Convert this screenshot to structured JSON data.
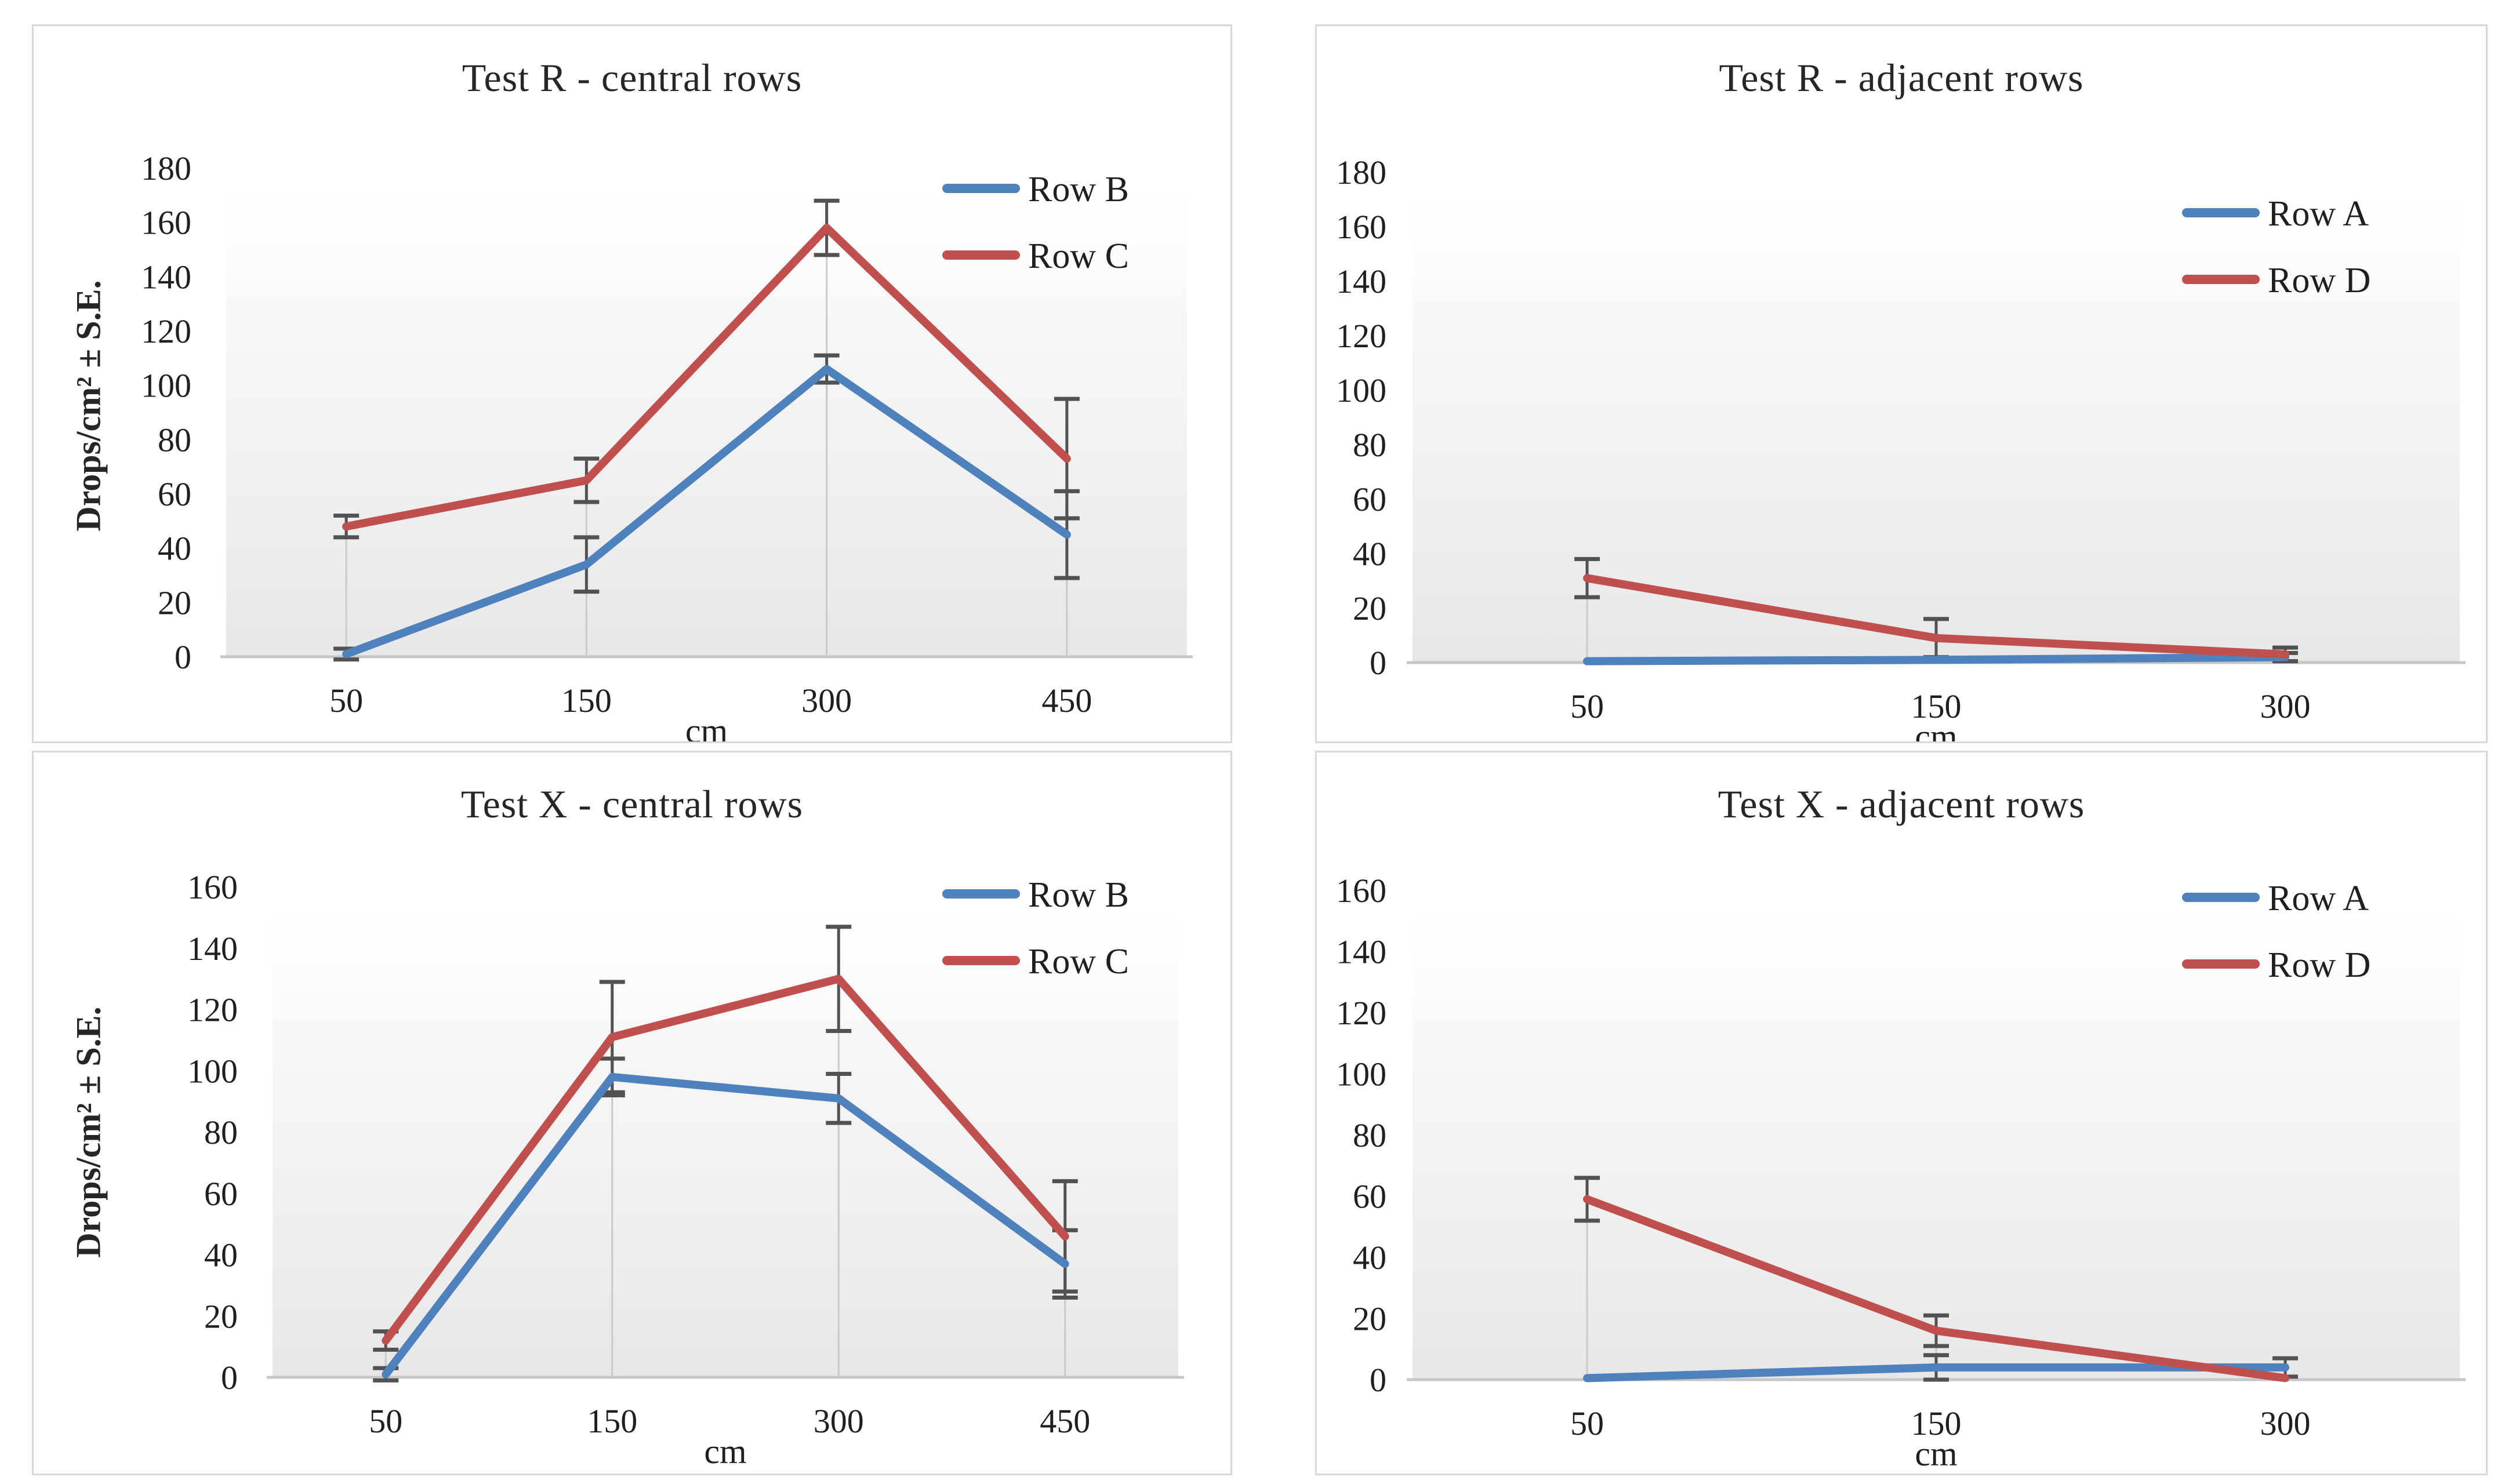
{
  "figure": {
    "background": "#ffffff",
    "panel_border_color": "#d8d8d8"
  },
  "palette": {
    "series_blue": "#4F81BD",
    "series_red": "#C0504D",
    "error_bar": "#525252",
    "drop_line": "#cbcbcb",
    "axis_line": "#c6c6c6",
    "text": "#1f1f1f"
  },
  "chart_data": [
    {
      "type": "line",
      "title": "Test R - central rows",
      "ylabel": "Drops/cm² ± S.E.",
      "xlabel": "cm",
      "categories": [
        "50",
        "150",
        "300",
        "450"
      ],
      "ylim": [
        0,
        180
      ],
      "yticks": [
        0,
        20,
        40,
        60,
        80,
        100,
        120,
        140,
        160,
        180
      ],
      "grid": false,
      "error_bars": true,
      "drop_lines": true,
      "legend_position": "inside-top-right",
      "series": [
        {
          "name": "Row B",
          "color": "#4F81BD",
          "values": [
            1,
            34,
            106,
            45
          ],
          "errors": [
            2,
            10,
            5,
            16
          ]
        },
        {
          "name": "Row C",
          "color": "#C0504D",
          "values": [
            48,
            65,
            158,
            73
          ],
          "errors": [
            4,
            8,
            10,
            22
          ]
        }
      ]
    },
    {
      "type": "line",
      "title": "Test R - adjacent rows",
      "ylabel": "",
      "xlabel": "cm",
      "categories": [
        "50",
        "150",
        "300"
      ],
      "ylim": [
        0,
        180
      ],
      "yticks": [
        0,
        20,
        40,
        60,
        80,
        100,
        120,
        140,
        160,
        180
      ],
      "grid": false,
      "error_bars": true,
      "drop_lines": true,
      "legend_position": "inside-top-right",
      "series": [
        {
          "name": "Row A",
          "color": "#4F81BD",
          "values": [
            0.5,
            1,
            2
          ],
          "errors": [
            0,
            0,
            1.5
          ]
        },
        {
          "name": "Row D",
          "color": "#C0504D",
          "values": [
            31,
            9,
            3
          ],
          "errors": [
            7,
            7,
            2.5
          ]
        }
      ]
    },
    {
      "type": "line",
      "title": "Test X - central rows",
      "ylabel": "Drops/cm² ± S.E.",
      "xlabel": "cm",
      "categories": [
        "50",
        "150",
        "300",
        "450"
      ],
      "ylim": [
        0,
        160
      ],
      "yticks": [
        0,
        20,
        40,
        60,
        80,
        100,
        120,
        140,
        160
      ],
      "grid": false,
      "error_bars": true,
      "drop_lines": true,
      "legend_position": "inside-top-right",
      "series": [
        {
          "name": "Row B",
          "color": "#4F81BD",
          "values": [
            1,
            98,
            91,
            37
          ],
          "errors": [
            2,
            6,
            8,
            11
          ]
        },
        {
          "name": "Row C",
          "color": "#C0504D",
          "values": [
            12,
            111,
            130,
            46
          ],
          "errors": [
            3,
            18,
            17,
            18
          ]
        }
      ]
    },
    {
      "type": "line",
      "title": "Test X - adjacent rows",
      "ylabel": "",
      "xlabel": "cm",
      "categories": [
        "50",
        "150",
        "300"
      ],
      "ylim": [
        0,
        160
      ],
      "yticks": [
        0,
        20,
        40,
        60,
        80,
        100,
        120,
        140,
        160
      ],
      "grid": false,
      "error_bars": true,
      "drop_lines": true,
      "legend_position": "inside-top-right",
      "series": [
        {
          "name": "Row A",
          "color": "#4F81BD",
          "values": [
            0.5,
            4,
            4
          ],
          "errors": [
            0,
            4,
            3
          ]
        },
        {
          "name": "Row D",
          "color": "#C0504D",
          "values": [
            59,
            16,
            0.5
          ],
          "errors": [
            7,
            5,
            0
          ]
        }
      ]
    }
  ]
}
